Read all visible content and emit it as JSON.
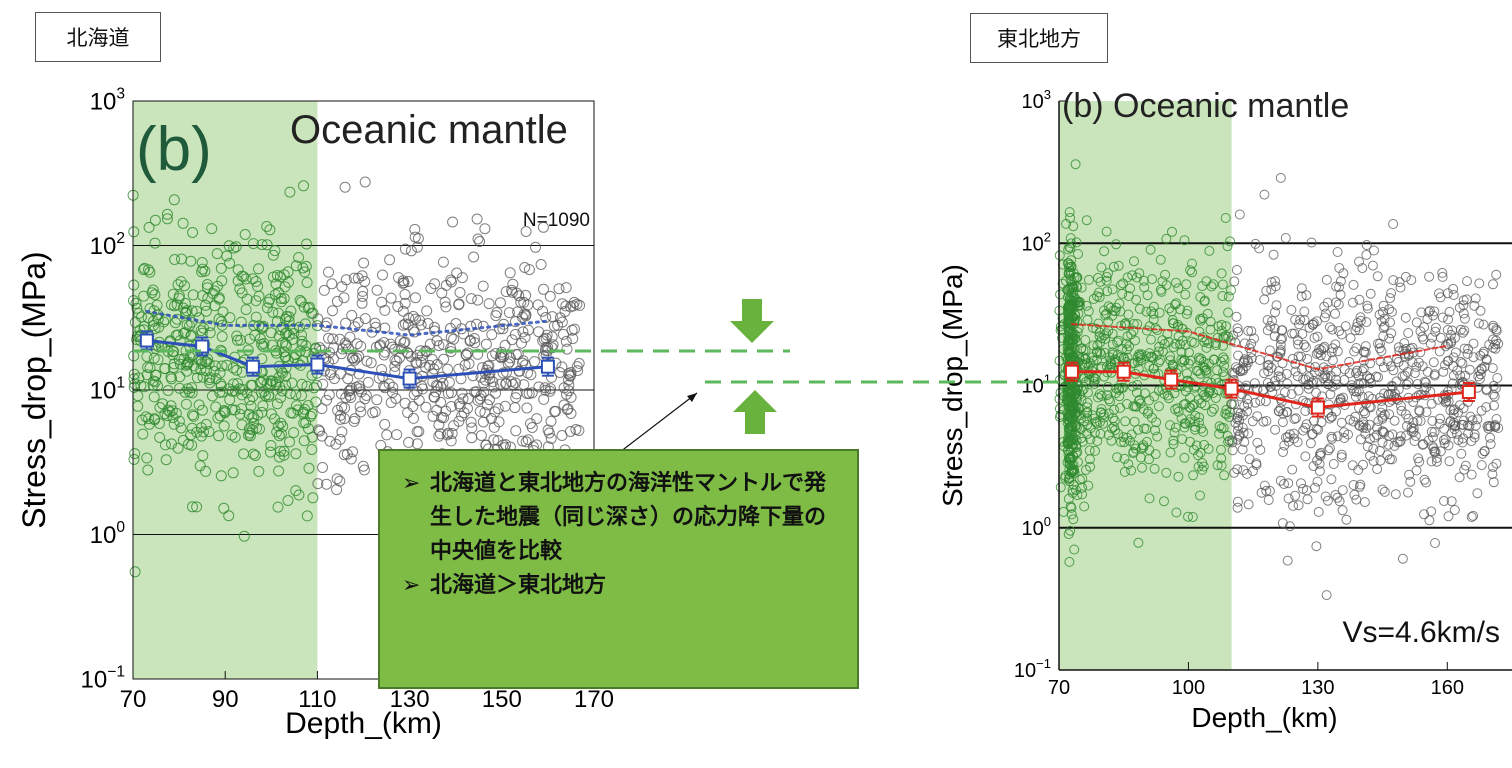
{
  "labels": {
    "left_region": "北海道",
    "right_region": "東北地方"
  },
  "callout": {
    "items": [
      "北海道と東北地方の海洋性マントルで発生した地震（同じ深さ）の応力降下量の中央値を比較",
      "北海道＞東北地方"
    ],
    "bullet_symbol": "➢"
  },
  "colors": {
    "shade": "#b8dca4",
    "green_points": "#2f8a2f",
    "black_points": "#555555",
    "blue_line": "#2d4fb8",
    "red_line": "#e0261c",
    "guide_dashed": "#5cb85c",
    "arrow": "#6ab23e"
  },
  "chart_data": [
    {
      "type": "scatter",
      "panel_label": "(b)",
      "title": "Oceanic mantle",
      "annotation": "N=1090",
      "xlabel": "Depth_(km)",
      "ylabel": "Stress_drop_(MPa)",
      "xlim": [
        70,
        170
      ],
      "ylim": [
        0.1,
        1000
      ],
      "yscale": "log",
      "xticks": [
        "70",
        "90",
        "110",
        "130",
        "150",
        "170"
      ],
      "yticks": [
        "10^-1",
        "10^0",
        "10^1",
        "10^2",
        "10^3"
      ],
      "shaded_range": [
        70,
        110
      ],
      "gridlines_y": [
        1,
        10,
        100
      ],
      "median_series": {
        "x": [
          73,
          85,
          96,
          110,
          130,
          160
        ],
        "y": [
          22,
          20,
          14.5,
          15,
          12,
          14.5
        ]
      },
      "upper_series": {
        "x": [
          73,
          90,
          110,
          130,
          160
        ],
        "y": [
          35,
          28,
          28,
          24,
          30
        ]
      }
    },
    {
      "type": "scatter",
      "panel_label": "(b)",
      "title": "Oceanic mantle",
      "annotation": "Vs=4.6km/s",
      "xlabel": "Depth_(km)",
      "ylabel": "Stress_drop_(MPa)",
      "xlim": [
        70,
        175
      ],
      "ylim": [
        0.1,
        1000
      ],
      "yscale": "log",
      "xticks": [
        "70",
        "100",
        "130",
        "160"
      ],
      "yticks": [
        "10^-1",
        "10^0",
        "10^1",
        "10^2",
        "10^3"
      ],
      "shaded_range": [
        70,
        110
      ],
      "gridlines_y": [
        1,
        10,
        100
      ],
      "median_series": {
        "x": [
          73,
          85,
          96,
          110,
          130,
          165
        ],
        "y": [
          12.5,
          12.5,
          11,
          9.5,
          7,
          9
        ]
      },
      "upper_series": {
        "x": [
          73,
          100,
          130,
          160
        ],
        "y": [
          27,
          24,
          13,
          19
        ]
      }
    }
  ]
}
